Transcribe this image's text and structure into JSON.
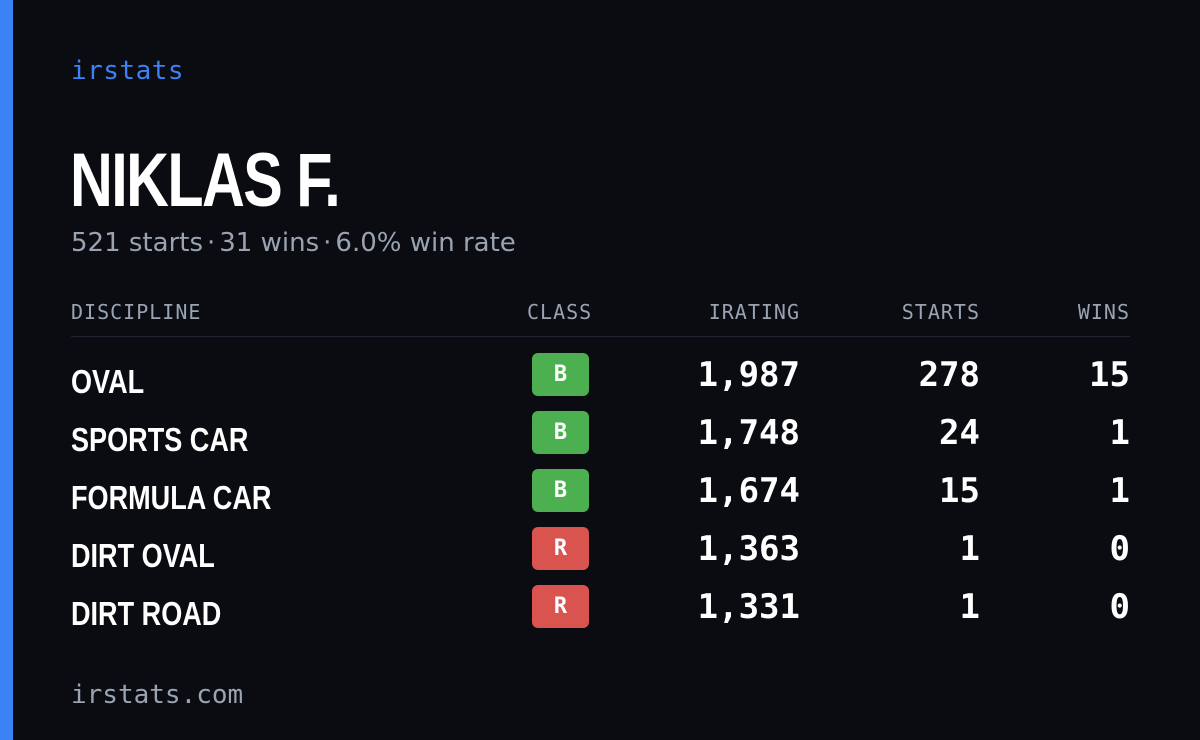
{
  "brand": "irstats",
  "driver": {
    "name": "NIKLAS F.",
    "starts": "521 starts",
    "wins": "31 wins",
    "win_rate": "6.0% win rate",
    "separator": "·"
  },
  "table": {
    "headers": {
      "discipline": "DISCIPLINE",
      "class": "CLASS",
      "irating": "IRATING",
      "starts": "STARTS",
      "wins": "WINS"
    },
    "rows": [
      {
        "discipline": "OVAL",
        "class": "B",
        "class_color": "#4caf50",
        "irating": "1,987",
        "starts": "278",
        "wins": "15"
      },
      {
        "discipline": "SPORTS CAR",
        "class": "B",
        "class_color": "#4caf50",
        "irating": "1,748",
        "starts": "24",
        "wins": "1"
      },
      {
        "discipline": "FORMULA CAR",
        "class": "B",
        "class_color": "#4caf50",
        "irating": "1,674",
        "starts": "15",
        "wins": "1"
      },
      {
        "discipline": "DIRT OVAL",
        "class": "R",
        "class_color": "#d9534f",
        "irating": "1,363",
        "starts": "1",
        "wins": "0"
      },
      {
        "discipline": "DIRT ROAD",
        "class": "R",
        "class_color": "#d9534f",
        "irating": "1,331",
        "starts": "1",
        "wins": "0"
      }
    ]
  },
  "footer": "irstats.com",
  "colors": {
    "accent": "#3b82f6",
    "background": "#0a0c12",
    "muted": "#9aa3b2"
  }
}
